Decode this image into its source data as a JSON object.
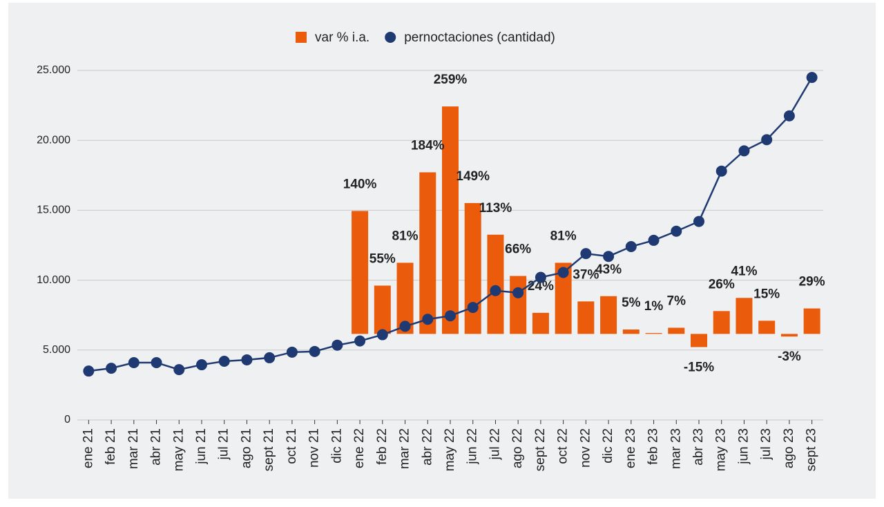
{
  "chart_data": {
    "type": "bar-line",
    "categories": [
      "ene 21",
      "feb 21",
      "mar 21",
      "abr 21",
      "may 21",
      "jun 21",
      "jul 21",
      "ago 21",
      "sept 21",
      "oct 21",
      "nov 21",
      "dic 21",
      "ene 22",
      "feb 22",
      "mar 22",
      "abr 22",
      "may 22",
      "jun 22",
      "jul 22",
      "ago 22",
      "sept 22",
      "oct 22",
      "nov 22",
      "dic 22",
      "ene 23",
      "feb 23",
      "mar 23",
      "abr 23",
      "may 23",
      "jun 23",
      "jul 23",
      "ago 23",
      "sept 23"
    ],
    "series": [
      {
        "name": "var % i.a.",
        "type": "bar",
        "axis": "y2",
        "color": "#ea5b0c",
        "values": [
          null,
          null,
          null,
          null,
          null,
          null,
          null,
          null,
          null,
          null,
          null,
          null,
          140,
          55,
          81,
          184,
          259,
          149,
          113,
          66,
          24,
          81,
          37,
          43,
          5,
          1,
          7,
          -15,
          26,
          41,
          15,
          -3,
          29
        ],
        "value_labels": [
          null,
          null,
          null,
          null,
          null,
          null,
          null,
          null,
          null,
          null,
          null,
          null,
          "140%",
          "55%",
          "81%",
          "184%",
          "259%",
          "149%",
          "113%",
          "66%",
          "24%",
          "81%",
          "37%",
          "43%",
          "5%",
          "1%",
          "7%",
          "-15%",
          "26%",
          "41%",
          "15%",
          "-3%",
          "29%"
        ]
      },
      {
        "name": "pernoctaciones (cantidad)",
        "type": "line",
        "color": "#1f3a73",
        "values": [
          3500,
          3700,
          4100,
          4100,
          3600,
          3950,
          4200,
          4300,
          4450,
          4850,
          4900,
          5350,
          5650,
          6100,
          6700,
          7200,
          7450,
          8050,
          9250,
          9100,
          10200,
          10550,
          11900,
          11700,
          12400,
          12850,
          13500,
          14200,
          17800,
          19250,
          20050,
          21750,
          24500
        ]
      }
    ],
    "ylim": [
      0,
      25000
    ],
    "yticks": [
      0,
      {
        "value": 5000,
        "label": "5.000"
      },
      {
        "value": 10000,
        "label": "10.000"
      },
      {
        "value": 15000,
        "label": "15.000"
      },
      {
        "value": 20000,
        "label": "20.000"
      },
      {
        "value": 25000,
        "label": "25.000"
      }
    ],
    "y2lim": [
      -98,
      300
    ],
    "grid": true,
    "legend": "top"
  }
}
